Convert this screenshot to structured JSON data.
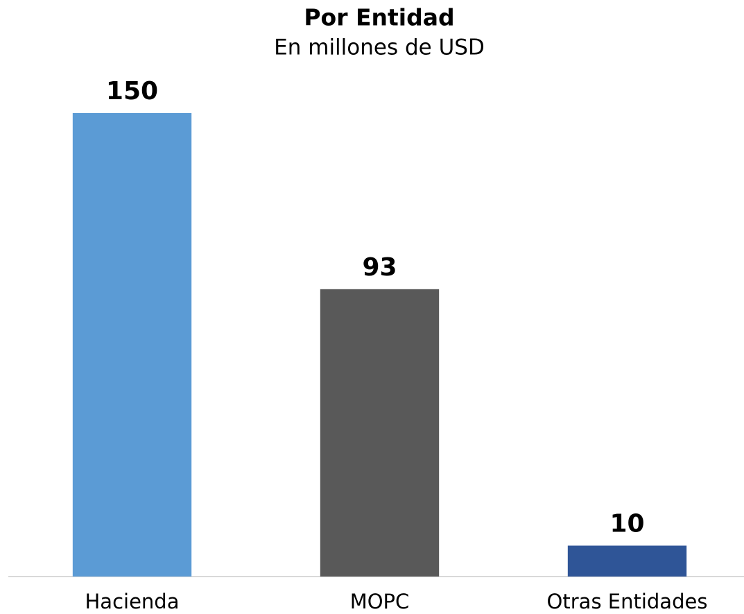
{
  "chart_data": {
    "type": "bar",
    "title": "Por Entidad",
    "subtitle": "En millones de USD",
    "categories": [
      "Hacienda",
      "MOPC",
      "Otras Entidades"
    ],
    "values": [
      150,
      93,
      10
    ],
    "colors": [
      "#5b9bd5",
      "#595959",
      "#2f5597"
    ]
  }
}
